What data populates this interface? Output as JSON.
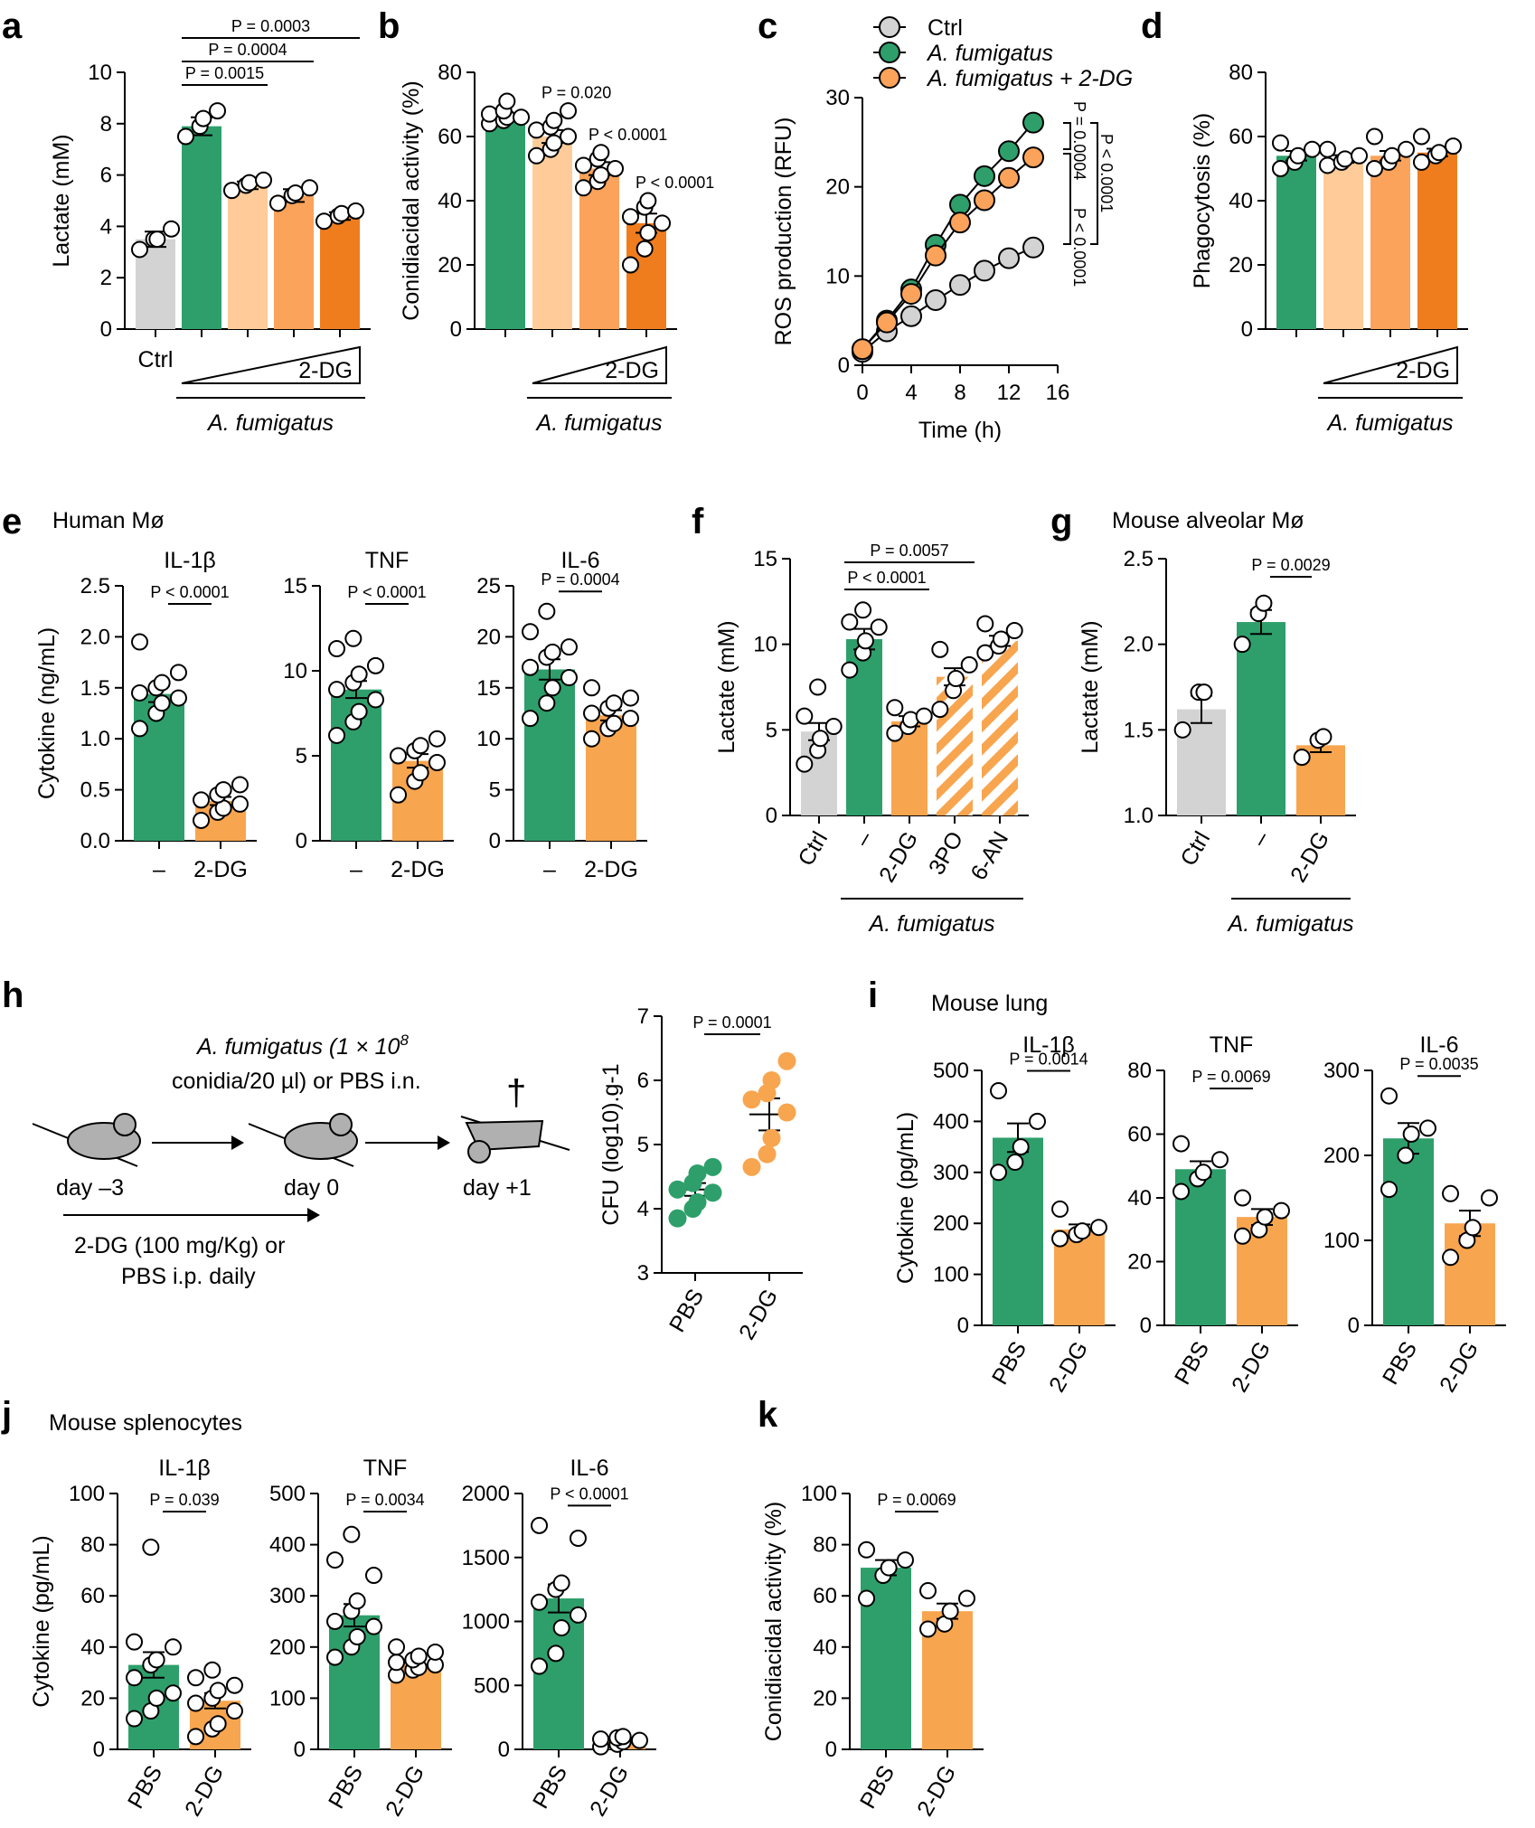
{
  "colors": {
    "ctrl": "#d3d3d3",
    "green": "#2e9f6b",
    "light_orange": "#ffcc99",
    "mid_orange": "#fba35a",
    "dark_orange": "#f07d1d",
    "orange": "#f8a54f"
  },
  "labels": {
    "group_af": "A. fumigatus",
    "dg": "2-DG",
    "human_mo": "Human Mø",
    "mouse_alveolar": "Mouse alveolar Mø",
    "mouse_lung": "Mouse lung",
    "mouse_splenocytes": "Mouse splenocytes",
    "sched_top1": "A. fumigatus (1 × 10",
    "sched_top1_sup": "8",
    "sched_top2": "conidia/20 µl) or PBS i.n.",
    "sched_day_m3": "day –3",
    "sched_day_0": "day 0",
    "sched_day_p1": "day +1",
    "sched_dagger": "†",
    "sched_bot1": "2-DG (100 mg/Kg) or",
    "sched_bot2": "PBS i.p. daily"
  },
  "chart_data": [
    {
      "id": "a",
      "type": "bar",
      "panel": "a",
      "ylabel": "Lactate (mM)",
      "ylim": [
        0,
        10
      ],
      "yticks": [
        "0",
        "2",
        "4",
        "6",
        "8",
        "10"
      ],
      "categories": [
        "Ctrl",
        "",
        "",
        "",
        ""
      ],
      "values": [
        3.5,
        7.9,
        5.6,
        5.2,
        4.4
      ],
      "sem": [
        0.3,
        0.35,
        0.15,
        0.25,
        0.15
      ],
      "points": [
        [
          3.1,
          3.5,
          3.5,
          3.9
        ],
        [
          7.5,
          7.9,
          8.2,
          8.5
        ],
        [
          5.4,
          5.6,
          5.7,
          5.8
        ],
        [
          4.9,
          5.2,
          5.3,
          5.5
        ],
        [
          4.2,
          4.4,
          4.5,
          4.6
        ]
      ],
      "colors": [
        "ctrl",
        "green",
        "light_orange",
        "mid_orange",
        "dark_orange"
      ],
      "pvalues": [
        {
          "text": "P = 0.0015",
          "from": 1,
          "to": 2
        },
        {
          "text": "P = 0.0004",
          "from": 1,
          "to": 3
        },
        {
          "text": "P = 0.0003",
          "from": 1,
          "to": 4
        }
      ],
      "treatment": "2-DG",
      "group": "A. fumigatus"
    },
    {
      "id": "b",
      "type": "bar",
      "panel": "b",
      "ylabel": "Conidiacidal activity (%)",
      "ylim": [
        0,
        80
      ],
      "yticks": [
        "0",
        "20",
        "40",
        "60",
        "80"
      ],
      "values": [
        66,
        60,
        50,
        33
      ],
      "sem": [
        1,
        2,
        2,
        3
      ],
      "points": [
        [
          64,
          65,
          66,
          66,
          67,
          68,
          71
        ],
        [
          54,
          56,
          58,
          60,
          62,
          63,
          65,
          68
        ],
        [
          44,
          46,
          48,
          50,
          51,
          53,
          55
        ],
        [
          20,
          25,
          30,
          33,
          35,
          38,
          40
        ]
      ],
      "colors": [
        "green",
        "light_orange",
        "mid_orange",
        "dark_orange"
      ],
      "pvalues": [
        {
          "text": "P = 0.020",
          "at": 1
        },
        {
          "text": "P < 0.0001",
          "at": 2
        },
        {
          "text": "P < 0.0001",
          "at": 3
        }
      ],
      "treatment": "2-DG",
      "group": "A. fumigatus"
    },
    {
      "id": "c",
      "type": "line",
      "panel": "c",
      "xlabel": "Time (h)",
      "ylabel": "ROS production (RFU)",
      "xlim": [
        0,
        16
      ],
      "ylim": [
        0,
        30
      ],
      "xticks": [
        "0",
        "4",
        "8",
        "12",
        "16"
      ],
      "yticks": [
        "0",
        "10",
        "20",
        "30"
      ],
      "x": [
        0,
        2,
        4,
        6,
        8,
        10,
        12,
        14
      ],
      "series": [
        {
          "name": "Ctrl",
          "values": [
            1.5,
            3.8,
            5.5,
            7.3,
            9.0,
            10.6,
            12.0,
            13.2
          ],
          "color": "ctrl"
        },
        {
          "name": "A. fumigatus",
          "values": [
            1.8,
            5.0,
            8.5,
            13.5,
            18.0,
            21.2,
            24.0,
            27.2
          ],
          "color": "green"
        },
        {
          "name": "A. fumigatus + 2-DG",
          "values": [
            1.8,
            4.8,
            8.0,
            12.3,
            16.0,
            18.5,
            21.0,
            23.3
          ],
          "color": "mid_orange"
        }
      ],
      "pvalues": [
        "P = 0.0004",
        "P < 0.0001",
        "P < 0.0001"
      ]
    },
    {
      "id": "d",
      "type": "bar",
      "panel": "d",
      "ylabel": "Phagocytosis (%)",
      "ylim": [
        0,
        80
      ],
      "yticks": [
        "0",
        "20",
        "40",
        "60",
        "80"
      ],
      "values": [
        54,
        53,
        54,
        55
      ],
      "sem": [
        1.5,
        1.2,
        1.5,
        1.2
      ],
      "points": [
        [
          50,
          52,
          54,
          56,
          58
        ],
        [
          51,
          52,
          53,
          54,
          56
        ],
        [
          50,
          52,
          54,
          56,
          60
        ],
        [
          52,
          54,
          55,
          57,
          60
        ]
      ],
      "colors": [
        "green",
        "light_orange",
        "mid_orange",
        "dark_orange"
      ],
      "treatment": "2-DG",
      "group": "A. fumigatus"
    },
    {
      "id": "e1",
      "type": "bar",
      "panel": "e",
      "title": "IL-1β",
      "ylabel": "Cytokine (ng/mL)",
      "ylim": [
        0,
        2.5
      ],
      "yticks": [
        "0.0",
        "0.5",
        "1.0",
        "1.5",
        "2.0",
        "2.5"
      ],
      "categories": [
        "–",
        "2-DG"
      ],
      "values": [
        1.44,
        0.39
      ],
      "sem": [
        0.08,
        0.04
      ],
      "points": [
        [
          1.1,
          1.25,
          1.35,
          1.4,
          1.45,
          1.5,
          1.55,
          1.65,
          1.95
        ],
        [
          0.2,
          0.28,
          0.32,
          0.36,
          0.4,
          0.45,
          0.5,
          0.55
        ]
      ],
      "colors": [
        "green",
        "orange"
      ],
      "pvalues": [
        {
          "text": "P < 0.0001",
          "from": 0,
          "to": 1
        }
      ]
    },
    {
      "id": "e2",
      "type": "bar",
      "panel": "e2",
      "title": "TNF",
      "ylim": [
        0,
        15
      ],
      "yticks": [
        "0",
        "5",
        "10",
        "15"
      ],
      "categories": [
        "–",
        "2-DG"
      ],
      "values": [
        8.9,
        4.7
      ],
      "sem": [
        0.5,
        0.4
      ],
      "points": [
        [
          6.2,
          7.0,
          7.6,
          8.3,
          8.9,
          9.3,
          9.8,
          10.3,
          11.3,
          11.9
        ],
        [
          2.7,
          3.5,
          4.0,
          4.6,
          5.0,
          5.3,
          5.6,
          6.0
        ]
      ],
      "colors": [
        "green",
        "orange"
      ],
      "pvalues": [
        {
          "text": "P < 0.0001",
          "from": 0,
          "to": 1
        }
      ]
    },
    {
      "id": "e3",
      "type": "bar",
      "panel": "e3",
      "title": "IL-6",
      "ylim": [
        0,
        25
      ],
      "yticks": [
        "0",
        "5",
        "10",
        "15",
        "20",
        "25"
      ],
      "categories": [
        "–",
        "2-DG"
      ],
      "values": [
        16.8,
        12.3
      ],
      "sem": [
        1.0,
        0.5
      ],
      "points": [
        [
          12.0,
          13.5,
          15.0,
          16.0,
          17.0,
          18.0,
          18.5,
          19.0,
          20.5,
          22.5
        ],
        [
          10.0,
          11.0,
          11.5,
          12.0,
          12.5,
          13.0,
          13.5,
          14.0,
          15.0
        ]
      ],
      "colors": [
        "green",
        "orange"
      ],
      "pvalues": [
        {
          "text": "P = 0.0004",
          "from": 0,
          "to": 1
        }
      ]
    },
    {
      "id": "f",
      "type": "bar",
      "panel": "f",
      "ylabel": "Lactate (mM)",
      "ylim": [
        0,
        15
      ],
      "yticks": [
        "0",
        "5",
        "10",
        "15"
      ],
      "categories": [
        "Ctrl",
        "–",
        "2-DG",
        "3PO",
        "6-AN"
      ],
      "values": [
        4.9,
        10.3,
        5.5,
        8.1,
        10.2
      ],
      "sem": [
        0.5,
        0.6,
        0.3,
        0.5,
        0.3
      ],
      "points": [
        [
          3.0,
          3.8,
          4.5,
          5.2,
          5.8,
          7.5
        ],
        [
          8.5,
          9.5,
          10.2,
          11.0,
          11.3,
          12.0
        ],
        [
          4.8,
          5.2,
          5.6,
          5.8,
          6.3
        ],
        [
          6.2,
          7.3,
          8.0,
          8.8,
          9.7
        ],
        [
          9.5,
          9.9,
          10.3,
          10.8,
          11.2
        ]
      ],
      "colors": [
        "ctrl",
        "green",
        "orange",
        "hatch",
        "hatch"
      ],
      "pvalues": [
        {
          "text": "P < 0.0001",
          "from": 1,
          "to": 2
        },
        {
          "text": "P = 0.0057",
          "from": 1,
          "to": 3
        }
      ],
      "group": "A. fumigatus"
    },
    {
      "id": "g",
      "type": "bar",
      "panel": "g",
      "ylabel": "Lactate (mM)",
      "ylim": [
        1.0,
        2.5
      ],
      "yticks": [
        "1.0",
        "1.5",
        "2.0",
        "2.5"
      ],
      "categories": [
        "Ctrl",
        "–",
        "2-DG"
      ],
      "values": [
        1.62,
        2.13,
        1.41
      ],
      "sem": [
        0.08,
        0.07,
        0.04
      ],
      "points": [
        [
          1.5,
          1.72,
          1.72
        ],
        [
          2.0,
          2.18,
          2.24
        ],
        [
          1.34,
          1.44,
          1.46
        ]
      ],
      "colors": [
        "ctrl",
        "green",
        "orange"
      ],
      "pvalues": [
        {
          "text": "P = 0.0029",
          "from": 1,
          "to": 2
        }
      ],
      "group": "A. fumigatus"
    },
    {
      "id": "h",
      "type": "scatter",
      "panel": "h",
      "ylabel": "CFU (log10).g-1",
      "ylim": [
        3,
        7
      ],
      "yticks": [
        "3",
        "4",
        "5",
        "6",
        "7"
      ],
      "categories": [
        "PBS",
        "2-DG"
      ],
      "values": [
        4.3,
        5.47
      ],
      "sem": [
        0.1,
        0.25
      ],
      "points": [
        [
          3.85,
          4.0,
          4.1,
          4.25,
          4.3,
          4.4,
          4.55,
          4.65
        ],
        [
          4.65,
          4.85,
          5.1,
          5.5,
          5.7,
          5.8,
          6.0,
          6.3
        ]
      ],
      "colors": [
        "green",
        "orange"
      ],
      "pvalues": [
        {
          "text": "P = 0.0001",
          "from": 0,
          "to": 1
        }
      ]
    },
    {
      "id": "i1",
      "type": "bar",
      "panel": "i",
      "title": "IL-1β",
      "ylabel": "Cytokine (pg/mL)",
      "ylim": [
        0,
        500
      ],
      "yticks": [
        "0",
        "100",
        "200",
        "300",
        "400",
        "500"
      ],
      "categories": [
        "PBS",
        "2-DG"
      ],
      "values": [
        368,
        188
      ],
      "sem": [
        28,
        10
      ],
      "points": [
        [
          300,
          320,
          350,
          400,
          460
        ],
        [
          170,
          178,
          185,
          192,
          228
        ]
      ],
      "colors": [
        "green",
        "orange"
      ],
      "pvalues": [
        {
          "text": "P = 0.0014",
          "from": 0,
          "to": 1
        }
      ]
    },
    {
      "id": "i2",
      "type": "bar",
      "panel": "i2",
      "title": "TNF",
      "ylim": [
        0,
        80
      ],
      "yticks": [
        "0",
        "20",
        "40",
        "60",
        "80"
      ],
      "categories": [
        "PBS",
        "2-DG"
      ],
      "values": [
        49,
        34
      ],
      "sem": [
        2.5,
        2.5
      ],
      "points": [
        [
          42,
          46,
          48,
          52,
          57
        ],
        [
          28,
          30,
          34,
          36,
          40
        ]
      ],
      "colors": [
        "green",
        "orange"
      ],
      "pvalues": [
        {
          "text": "P = 0.0069",
          "from": 0,
          "to": 1
        }
      ]
    },
    {
      "id": "i3",
      "type": "bar",
      "panel": "i3",
      "title": "IL-6",
      "ylim": [
        0,
        300
      ],
      "yticks": [
        "0",
        "100",
        "200",
        "300"
      ],
      "categories": [
        "PBS",
        "2-DG"
      ],
      "values": [
        220,
        120
      ],
      "sem": [
        18,
        15
      ],
      "points": [
        [
          160,
          200,
          225,
          232,
          270
        ],
        [
          80,
          100,
          115,
          150,
          155
        ]
      ],
      "colors": [
        "green",
        "orange"
      ],
      "pvalues": [
        {
          "text": "P = 0.0035",
          "from": 0,
          "to": 1
        }
      ]
    },
    {
      "id": "j1",
      "type": "bar",
      "panel": "j",
      "title": "IL-1β",
      "ylabel": "Cytokine (pg/mL)",
      "ylim": [
        0,
        100
      ],
      "yticks": [
        "0",
        "20",
        "40",
        "60",
        "80",
        "100"
      ],
      "categories": [
        "PBS",
        "2-DG"
      ],
      "values": [
        33,
        19
      ],
      "sem": [
        5,
        3
      ],
      "points": [
        [
          12,
          15,
          20,
          22,
          28,
          33,
          35,
          40,
          42,
          79
        ],
        [
          5,
          8,
          10,
          15,
          18,
          20,
          23,
          25,
          28,
          31
        ]
      ],
      "colors": [
        "green",
        "orange"
      ],
      "pvalues": [
        {
          "text": "P = 0.039",
          "from": 0,
          "to": 1
        }
      ]
    },
    {
      "id": "j2",
      "type": "bar",
      "panel": "j2",
      "title": "TNF",
      "ylim": [
        0,
        500
      ],
      "yticks": [
        "0",
        "100",
        "200",
        "300",
        "400",
        "500"
      ],
      "categories": [
        "PBS",
        "2-DG"
      ],
      "values": [
        262,
        168
      ],
      "sem": [
        22,
        8
      ],
      "points": [
        [
          180,
          200,
          220,
          240,
          250,
          270,
          290,
          340,
          370,
          420
        ],
        [
          145,
          155,
          160,
          165,
          170,
          175,
          182,
          190,
          200
        ]
      ],
      "colors": [
        "green",
        "orange"
      ],
      "pvalues": [
        {
          "text": "P = 0.0034",
          "from": 0,
          "to": 1
        }
      ]
    },
    {
      "id": "j3",
      "type": "bar",
      "panel": "j3",
      "title": "IL-6",
      "ylim": [
        0,
        2000
      ],
      "yticks": [
        "0",
        "500",
        "1000",
        "1500",
        "2000"
      ],
      "categories": [
        "PBS",
        "2-DG"
      ],
      "values": [
        1180,
        60
      ],
      "sem": [
        110,
        15
      ],
      "points": [
        [
          650,
          750,
          950,
          1050,
          1150,
          1250,
          1300,
          1650,
          1750
        ],
        [
          20,
          40,
          60,
          70,
          80,
          90,
          100
        ]
      ],
      "colors": [
        "green",
        "orange"
      ],
      "pvalues": [
        {
          "text": "P < 0.0001",
          "from": 0,
          "to": 1
        }
      ]
    },
    {
      "id": "k",
      "type": "bar",
      "panel": "k",
      "ylabel": "Conidiacidal activity (%)",
      "ylim": [
        0,
        100
      ],
      "yticks": [
        "0",
        "20",
        "40",
        "60",
        "80",
        "100"
      ],
      "categories": [
        "PBS",
        "2-DG"
      ],
      "values": [
        71,
        54
      ],
      "sem": [
        3,
        3
      ],
      "points": [
        [
          59,
          68,
          71,
          74,
          78
        ],
        [
          47,
          49,
          54,
          59,
          62
        ]
      ],
      "colors": [
        "green",
        "orange"
      ],
      "pvalues": [
        {
          "text": "P = 0.0069",
          "from": 0,
          "to": 1
        }
      ]
    }
  ],
  "panel_labels": [
    "a",
    "b",
    "c",
    "d",
    "e",
    "f",
    "g",
    "h",
    "i",
    "j",
    "k"
  ]
}
